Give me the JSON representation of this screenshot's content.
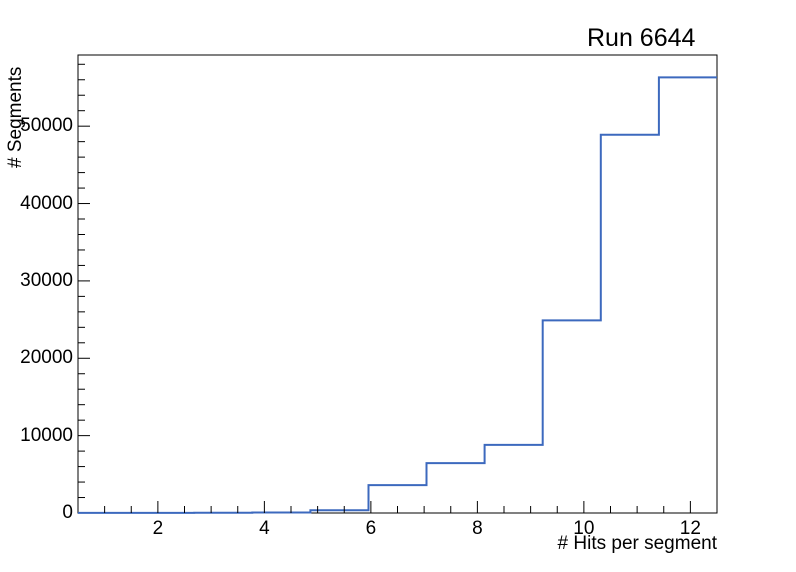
{
  "chart_data": {
    "type": "line",
    "style": "histogram-step",
    "title": "Run 6644",
    "xlabel": "# Hits per segment",
    "ylabel": "# Segments",
    "xlim": [
      0.5,
      12.5
    ],
    "ylim": [
      0,
      59200
    ],
    "bin_edges": [
      0.5,
      1.591,
      2.682,
      3.773,
      4.864,
      5.955,
      7.045,
      8.136,
      9.227,
      10.318,
      11.409,
      12.5
    ],
    "counts": [
      10,
      15,
      25,
      65,
      350,
      3600,
      6450,
      8800,
      24900,
      48900,
      56300
    ],
    "x_major_ticks": [
      {
        "value": 2,
        "label": "2"
      },
      {
        "value": 4,
        "label": "4"
      },
      {
        "value": 6,
        "label": "6"
      },
      {
        "value": 8,
        "label": "8"
      },
      {
        "value": 10,
        "label": "10"
      },
      {
        "value": 12,
        "label": "12"
      }
    ],
    "x_minor_tick_step": 0.5,
    "y_major_ticks": [
      {
        "value": 0,
        "label": "0"
      },
      {
        "value": 10000,
        "label": "10000"
      },
      {
        "value": 20000,
        "label": "20000"
      },
      {
        "value": 30000,
        "label": "30000"
      },
      {
        "value": 40000,
        "label": "40000"
      },
      {
        "value": 50000,
        "label": "50000"
      }
    ],
    "y_minor_tick_step": 2000,
    "grid": false,
    "legend_position": "none",
    "line_color": "#3c69be",
    "frame_color": "#000000",
    "background_color": "#ffffff"
  }
}
